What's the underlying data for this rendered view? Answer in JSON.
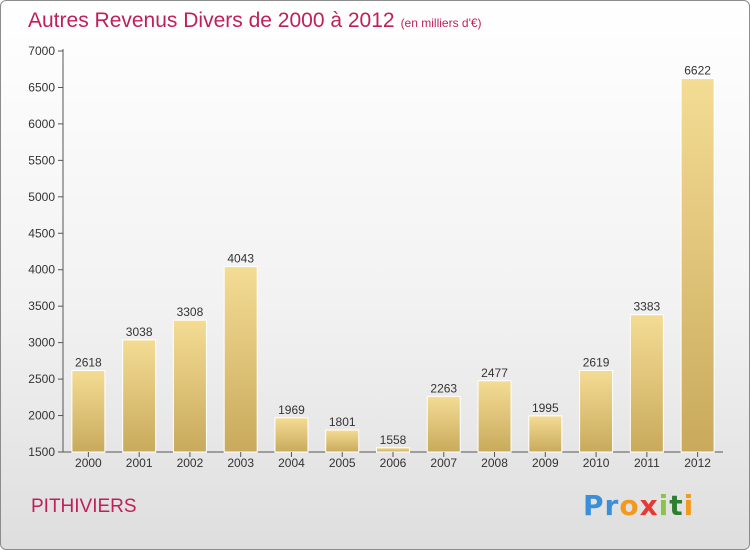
{
  "header": {
    "title": "Autres Revenus Divers de 2000 à 2012",
    "unit": "(en milliers d'€)"
  },
  "footer": {
    "city": "PITHIVIERS",
    "logo": "Proxiti"
  },
  "colors": {
    "accent": "#c0205a",
    "bar_light": "#f4dc94",
    "bar_dark": "#c9aa5c"
  },
  "chart_data": {
    "type": "bar",
    "title": "Autres Revenus Divers de 2000 à 2012",
    "subtitle": "(en milliers d'€)",
    "xlabel": "",
    "ylabel": "",
    "categories": [
      "2000",
      "2001",
      "2002",
      "2003",
      "2004",
      "2005",
      "2006",
      "2007",
      "2008",
      "2009",
      "2010",
      "2011",
      "2012"
    ],
    "values": [
      2618,
      3038,
      3308,
      4043,
      1969,
      1801,
      1558,
      2263,
      2477,
      1995,
      2619,
      3383,
      6622
    ],
    "ylim": [
      1500,
      7000
    ],
    "yticks": [
      1500,
      2000,
      2500,
      3000,
      3500,
      4000,
      4500,
      5000,
      5500,
      6000,
      6500,
      7000
    ],
    "grid": false,
    "legend": "none"
  }
}
